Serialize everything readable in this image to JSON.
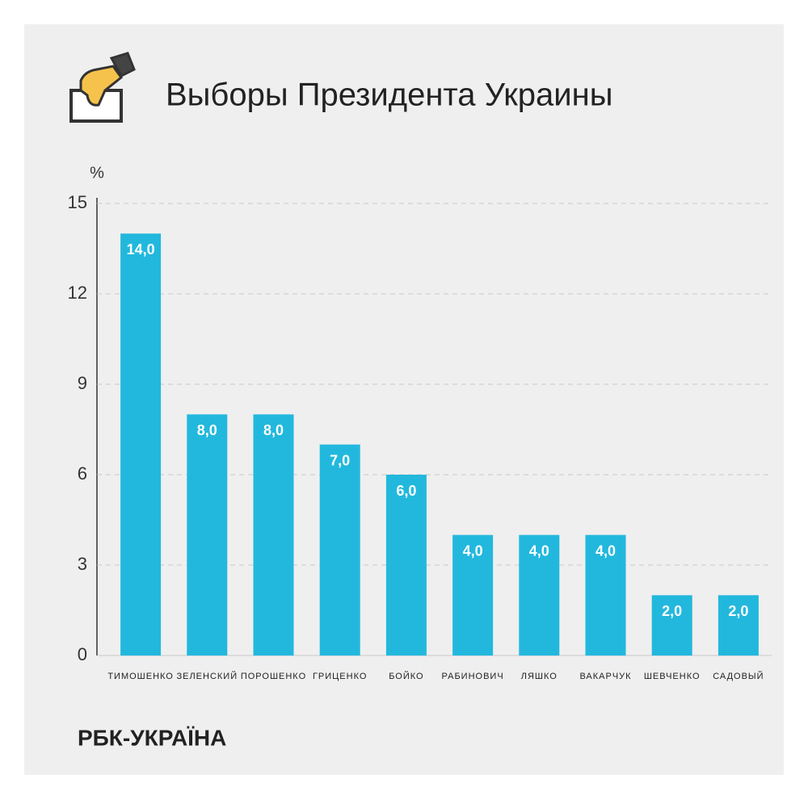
{
  "chart_data": {
    "type": "bar",
    "title": "Выборы Президента Украины",
    "y_label": "%",
    "categories": [
      "ТИМОШЕНКО",
      "ЗЕЛЕНСКИЙ",
      "ПОРОШЕНКО",
      "ГРИЦЕНКО",
      "БОЙКО",
      "РАБИНОВИЧ",
      "ЛЯШКО",
      "ВАКАРЧУК",
      "ШЕВЧЕНКО",
      "САДОВЫЙ"
    ],
    "values": [
      14,
      8,
      8,
      7,
      6,
      4,
      4,
      4,
      2,
      2
    ],
    "value_labels": [
      "14,0",
      "8,0",
      "8,0",
      "7,0",
      "6,0",
      "4,0",
      "4,0",
      "4,0",
      "2,0",
      "2,0"
    ],
    "color": "#22b8dd",
    "ylim": [
      0,
      15
    ],
    "yticks": [
      0,
      3,
      6,
      9,
      12,
      15
    ],
    "grid": true,
    "source": "РБК-УКРАЇНА"
  }
}
